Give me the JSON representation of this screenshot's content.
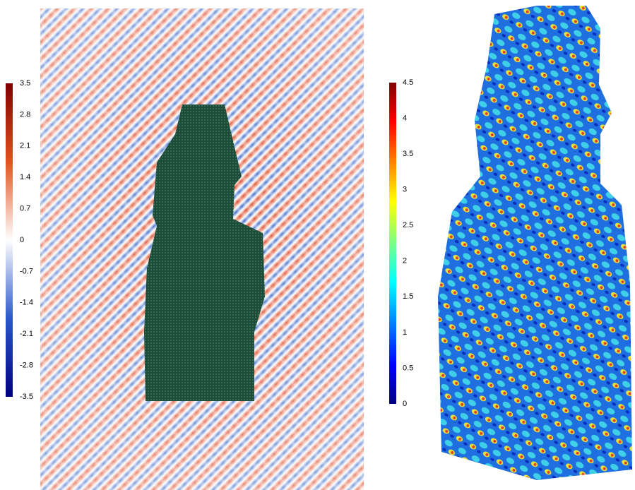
{
  "colorbars": [
    {
      "ticks": [
        "3.5",
        "2.8",
        "2.1",
        "1.4",
        "0.7",
        "0",
        "-0.7",
        "-1.4",
        "-2.1",
        "-2.8",
        "-3.5"
      ]
    },
    {
      "ticks": [
        "4.5",
        "4",
        "3.5",
        "3",
        "2.5",
        "2",
        "1.5",
        "1",
        "0.5",
        "0"
      ]
    }
  ]
}
